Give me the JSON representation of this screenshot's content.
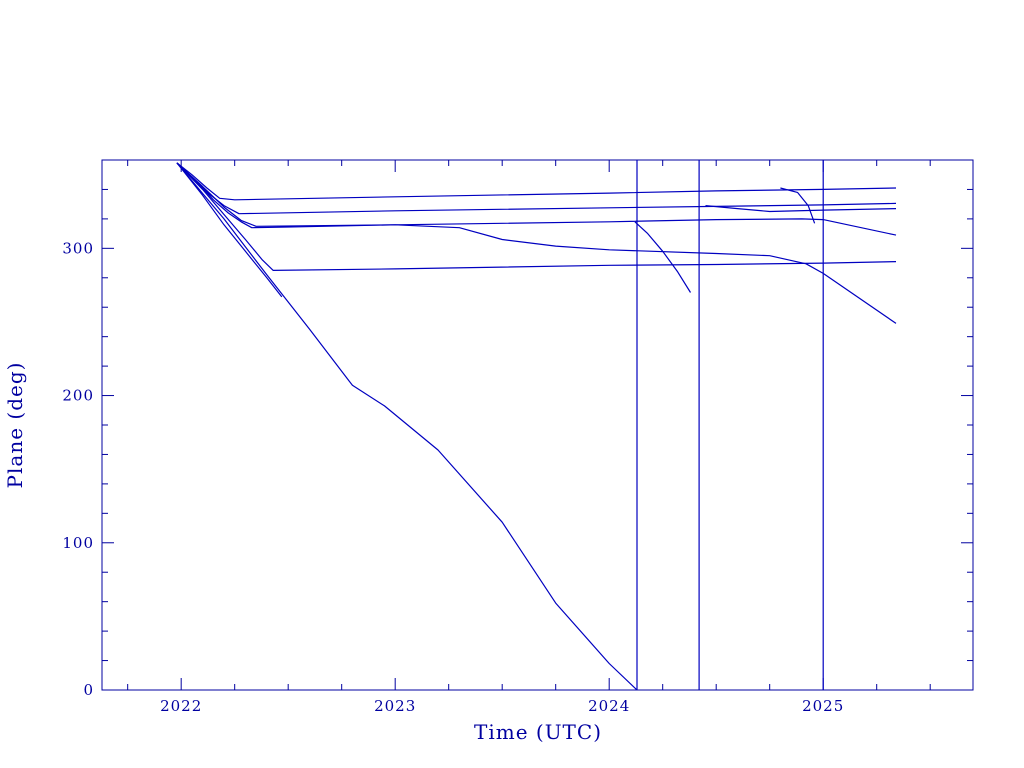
{
  "chart_data": {
    "type": "line",
    "title": "",
    "xlabel": "Time (UTC)",
    "ylabel": "Plane (deg)",
    "xlim": [
      2021.63,
      2025.7
    ],
    "ylim": [
      0,
      360
    ],
    "x_ticks": [
      2022,
      2023,
      2024,
      2025
    ],
    "x_tick_labels": [
      "2022",
      "2023",
      "2024",
      "2025"
    ],
    "y_ticks": [
      0,
      100,
      200,
      300
    ],
    "y_tick_labels": [
      "0",
      "100",
      "200",
      "300"
    ],
    "x_minor_step": 0.25,
    "y_minor_step": 20,
    "grid": false,
    "legend": "none",
    "line_color": "#0000c0",
    "axis_color": "#0000a0",
    "series": [
      {
        "x": [
          2021.98,
          2022.05,
          2022.12,
          2022.18,
          2022.25,
          2023.0,
          2024.0,
          2024.5,
          2025.0,
          2025.34
        ],
        "y": [
          358,
          350,
          341,
          334,
          333,
          335,
          337.5,
          339,
          340,
          341
        ]
      },
      {
        "x": [
          2021.98,
          2022.06,
          2022.13,
          2022.2,
          2022.27,
          2023.0,
          2024.0,
          2024.5,
          2025.0,
          2025.34
        ],
        "y": [
          358,
          347,
          337,
          329,
          323.5,
          325.5,
          327.5,
          328.5,
          329.5,
          330.5
        ]
      },
      {
        "x": [
          2021.98,
          2022.08,
          2022.15,
          2022.22,
          2022.28,
          2022.33,
          2022.5,
          2023.0,
          2023.3,
          2023.5,
          2023.75,
          2024.0,
          2024.5,
          2024.75,
          2024.92,
          2025.0,
          2025.34
        ],
        "y": [
          358,
          344,
          333,
          324,
          318,
          314,
          314.5,
          316,
          314,
          306,
          301.5,
          299,
          296.5,
          295,
          289.5,
          283,
          249
        ]
      },
      {
        "x": [
          2021.98,
          2022.1,
          2022.2,
          2022.28,
          2022.35,
          2023.0,
          2023.5,
          2024.0,
          2024.5,
          2024.9,
          2025.0,
          2025.34
        ],
        "y": [
          358,
          342,
          328,
          319,
          315,
          316,
          317,
          318,
          319.5,
          320,
          319.5,
          309
        ]
      },
      {
        "x": [
          2021.98,
          2022.1,
          2022.2,
          2022.3,
          2022.38,
          2022.43,
          2023.0,
          2024.0,
          2024.5,
          2025.0,
          2025.34
        ],
        "y": [
          358,
          340,
          323,
          306,
          292,
          285,
          286,
          288.5,
          289,
          290,
          291
        ]
      },
      {
        "x": [
          2021.98,
          2022.1,
          2022.2,
          2022.3,
          2022.4,
          2022.47
        ],
        "y": [
          358,
          336,
          316,
          298,
          280,
          267
        ]
      },
      {
        "x": [
          2021.98,
          2022.2,
          2022.4,
          2022.6,
          2022.8,
          2022.95,
          2023.2,
          2023.5,
          2023.75,
          2024.0,
          2024.13
        ],
        "y": [
          358,
          320,
          282,
          245,
          207,
          193,
          163,
          114,
          59,
          18,
          0
        ]
      },
      {
        "x": [
          2024.12,
          2024.18,
          2024.25,
          2024.32,
          2024.38
        ],
        "y": [
          318,
          310,
          298,
          284,
          270
        ]
      },
      {
        "x": [
          2024.8,
          2024.88,
          2024.93,
          2024.96
        ],
        "y": [
          341,
          338,
          329,
          317
        ]
      },
      {
        "x": [
          2024.45,
          2024.6,
          2024.75,
          2025.0,
          2025.34
        ],
        "y": [
          329,
          327,
          325,
          326,
          327
        ]
      },
      {
        "x": [
          2024.13,
          2024.13
        ],
        "y": [
          0,
          360
        ]
      },
      {
        "x": [
          2024.42,
          2024.42
        ],
        "y": [
          0,
          360
        ]
      },
      {
        "x": [
          2025.0,
          2025.0
        ],
        "y": [
          0,
          360
        ]
      }
    ]
  }
}
